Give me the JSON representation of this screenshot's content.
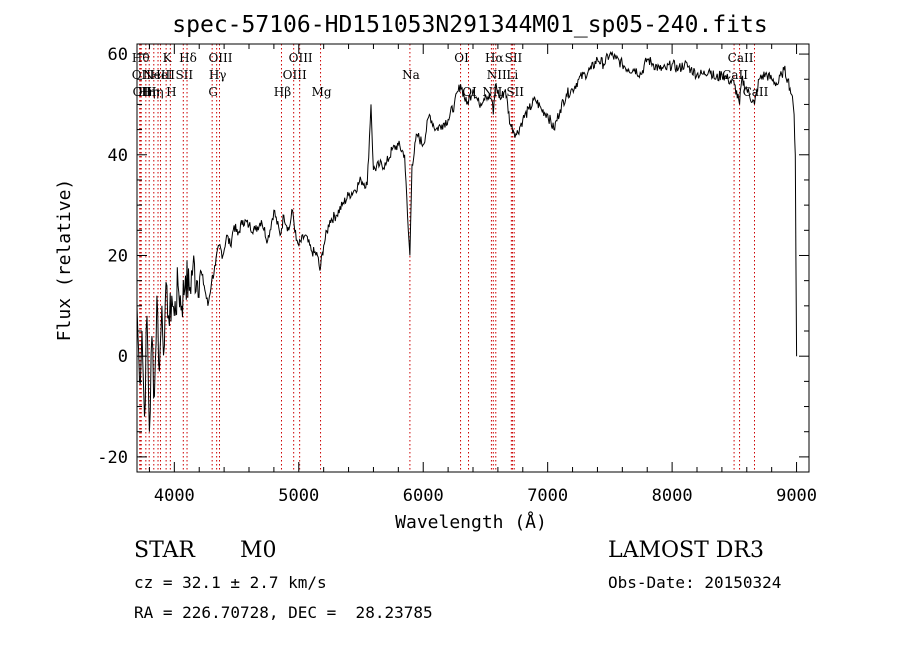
{
  "chart_data": {
    "type": "line",
    "title": "spec-57106-HD151053N291344M01_sp05-240.fits",
    "xlabel": "Wavelength (Å)",
    "ylabel": "Flux (relative)",
    "xlim": [
      3700,
      9100
    ],
    "ylim": [
      -23,
      62
    ],
    "x_ticks": [
      4000,
      5000,
      6000,
      7000,
      8000,
      9000
    ],
    "y_ticks": [
      -20,
      0,
      20,
      40,
      60
    ],
    "grid": false,
    "line_color": "#000000",
    "marker_color": "#cc0000",
    "spectrum": {
      "x": [
        3700,
        3720,
        3740,
        3760,
        3780,
        3800,
        3820,
        3840,
        3860,
        3880,
        3900,
        3920,
        3940,
        3960,
        3980,
        4000,
        4030,
        4060,
        4090,
        4120,
        4150,
        4180,
        4210,
        4240,
        4270,
        4300,
        4330,
        4360,
        4390,
        4420,
        4450,
        4480,
        4510,
        4550,
        4600,
        4650,
        4700,
        4750,
        4800,
        4850,
        4880,
        4920,
        4950,
        4980,
        5000,
        5050,
        5100,
        5150,
        5170,
        5200,
        5250,
        5300,
        5350,
        5400,
        5450,
        5500,
        5550,
        5580,
        5600,
        5650,
        5700,
        5750,
        5800,
        5850,
        5880,
        5893,
        5910,
        5950,
        6000,
        6050,
        6100,
        6150,
        6200,
        6250,
        6300,
        6350,
        6400,
        6450,
        6500,
        6550,
        6563,
        6580,
        6620,
        6660,
        6700,
        6750,
        6800,
        6850,
        6900,
        6950,
        7000,
        7050,
        7100,
        7150,
        7200,
        7250,
        7300,
        7350,
        7400,
        7450,
        7500,
        7550,
        7600,
        7650,
        7700,
        7750,
        7800,
        7850,
        7900,
        7950,
        8000,
        8050,
        8100,
        8150,
        8200,
        8250,
        8300,
        8350,
        8400,
        8450,
        8500,
        8542,
        8560,
        8600,
        8662,
        8700,
        8750,
        8800,
        8850,
        8880,
        8900,
        8930,
        8960,
        8980,
        8990,
        9000
      ],
      "y": [
        10,
        -5,
        5,
        -12,
        8,
        -15,
        4,
        -8,
        12,
        -3,
        10,
        2,
        14,
        6,
        12,
        8,
        14,
        10,
        16,
        13,
        18,
        15,
        17,
        14,
        10,
        15,
        18,
        22,
        20,
        24,
        22,
        26,
        24,
        27,
        26,
        25,
        27,
        23,
        29,
        24,
        28,
        25,
        29,
        23,
        22,
        24,
        21,
        20,
        17,
        22,
        27,
        28,
        30,
        32,
        33,
        35,
        34,
        50,
        37,
        38,
        38,
        41,
        42,
        40,
        25,
        20,
        38,
        44,
        42,
        48,
        45,
        46,
        47,
        50,
        54,
        50,
        53,
        50,
        52,
        51,
        48,
        54,
        51,
        53,
        46,
        44,
        47,
        49,
        51,
        49,
        48,
        45,
        49,
        52,
        53,
        55,
        56,
        57,
        59,
        58,
        60,
        59,
        58,
        57,
        57,
        56,
        59,
        58,
        57,
        57,
        58,
        57,
        58,
        57,
        56,
        56,
        57,
        55,
        56,
        55,
        54,
        50,
        55,
        53,
        50,
        55,
        56,
        55,
        54,
        56,
        57,
        55,
        52,
        48,
        40,
        0
      ]
    },
    "line_markers": [
      {
        "w": 3722,
        "label": "Hθ",
        "row": 1
      },
      {
        "w": 3727,
        "label": "OII",
        "row": 2
      },
      {
        "w": 3734,
        "label": "OII",
        "row": 3
      },
      {
        "w": 3771,
        "label": "Hη",
        "row": 3
      },
      {
        "w": 3798,
        "label": "Hη",
        "row": 3
      },
      {
        "w": 3835,
        "label": "Hη",
        "row": 3
      },
      {
        "w": 3869,
        "label": "NeIII",
        "row": 2
      },
      {
        "w": 3889,
        "label": "HeI",
        "row": 2
      },
      {
        "w": 3934,
        "label": "K",
        "row": 1
      },
      {
        "w": 3968,
        "label": "H",
        "row": 3
      },
      {
        "w": 4072,
        "label": "SII",
        "row": 2
      },
      {
        "w": 4102,
        "label": "Hδ",
        "row": 1
      },
      {
        "w": 4304,
        "label": "G",
        "row": 3
      },
      {
        "w": 4340,
        "label": "Hγ",
        "row": 2
      },
      {
        "w": 4363,
        "label": "OIII",
        "row": 1
      },
      {
        "w": 4861,
        "label": "Hβ",
        "row": 3
      },
      {
        "w": 4959,
        "label": "OIII",
        "row": 2
      },
      {
        "w": 5007,
        "label": "OIII",
        "row": 1
      },
      {
        "w": 5175,
        "label": "Mg",
        "row": 3
      },
      {
        "w": 5893,
        "label": "Na",
        "row": 2
      },
      {
        "w": 6300,
        "label": "OI",
        "row": 1
      },
      {
        "w": 6364,
        "label": "OI",
        "row": 3
      },
      {
        "w": 6548,
        "label": "NII",
        "row": 3
      },
      {
        "w": 6563,
        "label": "Hα",
        "row": 1
      },
      {
        "w": 6583,
        "label": "NII",
        "row": 2
      },
      {
        "w": 6708,
        "label": "Li",
        "row": 2
      },
      {
        "w": 6717,
        "label": "SII",
        "row": 1
      },
      {
        "w": 6731,
        "label": "SII",
        "row": 3
      },
      {
        "w": 8498,
        "label": "CaII",
        "row": 2
      },
      {
        "w": 8542,
        "label": "CaII",
        "row": 1
      },
      {
        "w": 8662,
        "label": "CaII",
        "row": 3
      }
    ]
  },
  "info": {
    "object_class": "STAR",
    "subclass": "M0",
    "survey": "LAMOST DR3",
    "redshift_line": "cz = 32.1 ± 2.7 km/s",
    "obs_date_line": "Obs-Date: 20150324",
    "coords_line": "RA = 226.70728, DEC =  28.23785"
  }
}
